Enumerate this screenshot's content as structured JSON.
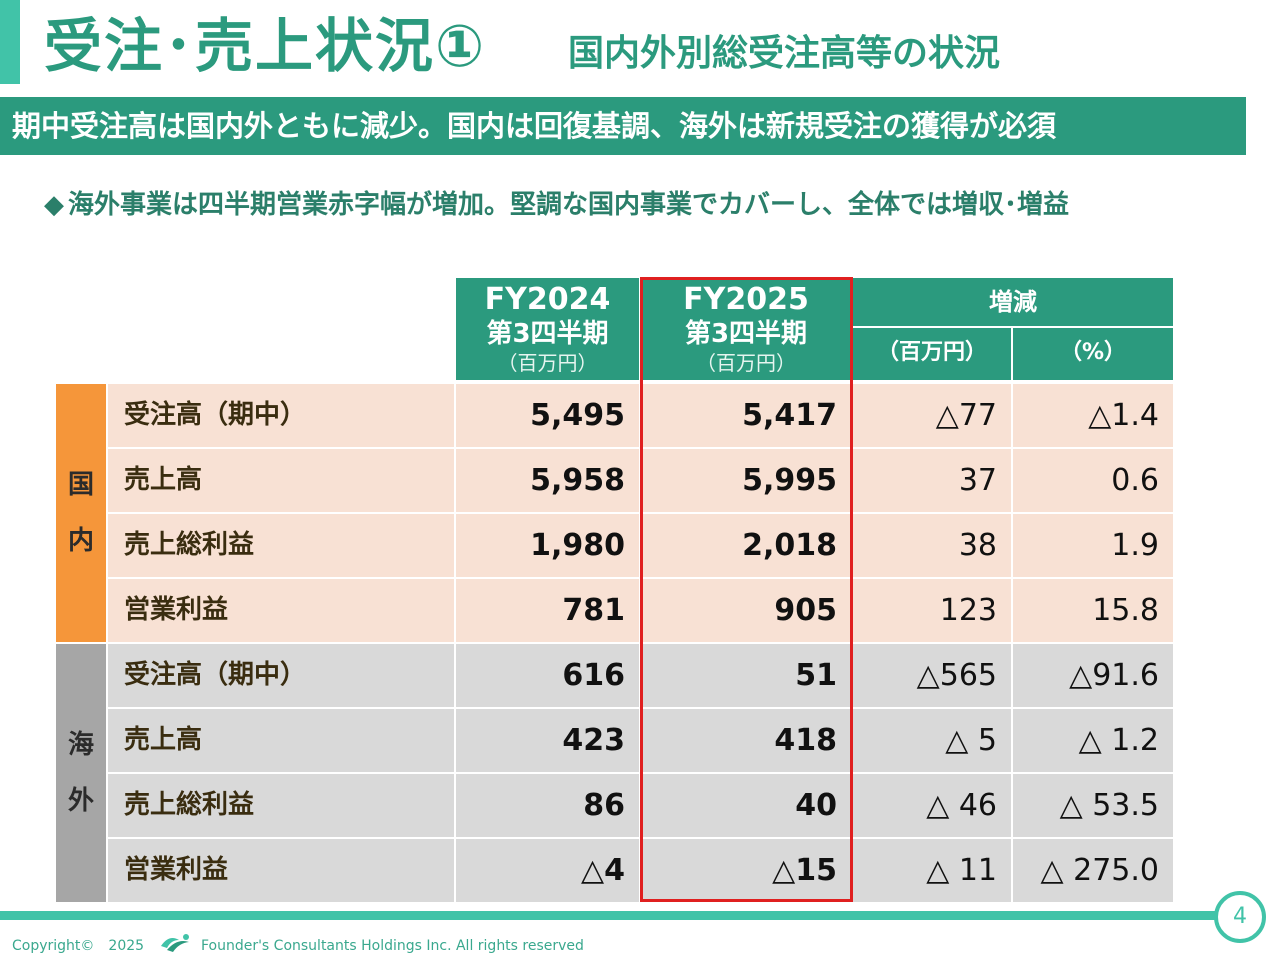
{
  "header": {
    "title": "受注･売上状況①",
    "subtitle": "国内外別総受注高等の状況"
  },
  "banner": "期中受注高は国内外ともに減少。国内は回復基調、海外は新規受注の獲得が必須",
  "bullet": {
    "marker": "◆",
    "text": "海外事業は四半期営業赤字幅が増加。堅調な国内事業でカバーし、全体では増収･増益"
  },
  "table": {
    "columns": {
      "fy2024": {
        "year": "FY2024",
        "period": "第3四半期",
        "unit": "（百万円）"
      },
      "fy2025": {
        "year": "FY2025",
        "period": "第3四半期",
        "unit": "（百万円）"
      },
      "change": {
        "label": "増減",
        "abs_unit": "（百万円）",
        "pct_unit": "（%）"
      }
    },
    "groups": [
      {
        "label_top": "国",
        "label_bottom": "内",
        "color": "#f5963a",
        "rows": [
          {
            "label": "受注高（期中）",
            "fy2024": "5,495",
            "fy2025": "5,417",
            "diff": "△77",
            "pct": "△1.4"
          },
          {
            "label": "売上高",
            "fy2024": "5,958",
            "fy2025": "5,995",
            "diff": "37",
            "pct": "0.6"
          },
          {
            "label": "売上総利益",
            "fy2024": "1,980",
            "fy2025": "2,018",
            "diff": "38",
            "pct": "1.9"
          },
          {
            "label": "営業利益",
            "fy2024": "781",
            "fy2025": "905",
            "diff": "123",
            "pct": "15.8"
          }
        ]
      },
      {
        "label_top": "海",
        "label_bottom": "外",
        "color": "#a6a6a6",
        "rows": [
          {
            "label": "受注高（期中）",
            "fy2024": "616",
            "fy2025": "51",
            "diff": "△565",
            "pct": "△91.6"
          },
          {
            "label": "売上高",
            "fy2024": "423",
            "fy2025": "418",
            "diff": "△ 5",
            "pct": "△ 1.2"
          },
          {
            "label": "売上総利益",
            "fy2024": "86",
            "fy2025": "40",
            "diff": "△ 46",
            "pct": "△ 53.5"
          },
          {
            "label": "営業利益",
            "fy2024": "△4",
            "fy2025": "△15",
            "diff": "△ 11",
            "pct": "△ 275.0"
          }
        ]
      }
    ]
  },
  "footer": {
    "copyright": "Copyright©　2025",
    "company": "Founder's Consultants Holdings Inc.  All rights reserved",
    "page_number": "4"
  },
  "colors": {
    "accent": "#2b9a7e",
    "light_accent": "#41c3a8",
    "highlight_border": "#e02020",
    "domestic_row": "#f8e1d4",
    "overseas_row": "#d9d9d9"
  }
}
